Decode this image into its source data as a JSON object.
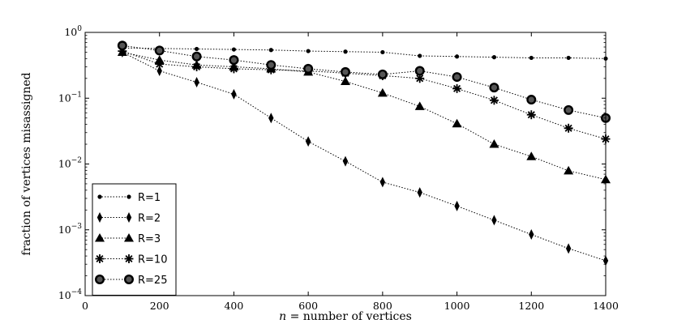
{
  "chart_data": {
    "type": "line",
    "xlabel_var": "n",
    "xlabel_rest": " = number of vertices",
    "ylabel": "fraction of vertices misassigned",
    "xlim": [
      0,
      1400
    ],
    "ylim": [
      0.0001,
      1
    ],
    "yscale": "log",
    "grid": false,
    "legend_position": "lower-left",
    "xticks": [
      0,
      200,
      400,
      600,
      800,
      1000,
      1200,
      1400
    ],
    "yticks": [
      {
        "value": 0.0001,
        "base": "10",
        "exp": "−4"
      },
      {
        "value": 0.001,
        "base": "10",
        "exp": "−3"
      },
      {
        "value": 0.01,
        "base": "10",
        "exp": "−2"
      },
      {
        "value": 0.1,
        "base": "10",
        "exp": "−1"
      },
      {
        "value": 1,
        "base": "10",
        "exp": "0"
      }
    ],
    "x": [
      100,
      200,
      300,
      400,
      500,
      600,
      700,
      800,
      900,
      1000,
      1100,
      1200,
      1300,
      1400
    ],
    "series": [
      {
        "name": "R=1",
        "marker": "dot",
        "values": [
          0.58,
          0.57,
          0.56,
          0.55,
          0.54,
          0.52,
          0.51,
          0.5,
          0.44,
          0.43,
          0.42,
          0.41,
          0.41,
          0.4
        ]
      },
      {
        "name": "R=2",
        "marker": "thin-diamond",
        "values": [
          0.5,
          0.26,
          0.175,
          0.115,
          0.05,
          0.022,
          0.011,
          0.0053,
          0.0037,
          0.0023,
          0.0014,
          0.00085,
          0.00052,
          0.00034
        ]
      },
      {
        "name": "R=3",
        "marker": "triangle",
        "values": [
          0.5,
          0.38,
          0.32,
          0.3,
          0.28,
          0.25,
          0.18,
          0.12,
          0.075,
          0.041,
          0.02,
          0.013,
          0.0079,
          0.0058
        ]
      },
      {
        "name": "R=10",
        "marker": "star",
        "values": [
          0.52,
          0.33,
          0.3,
          0.28,
          0.27,
          0.26,
          0.24,
          0.22,
          0.2,
          0.14,
          0.093,
          0.056,
          0.035,
          0.024
        ]
      },
      {
        "name": "R=25",
        "marker": "big-circle",
        "values": [
          0.63,
          0.53,
          0.43,
          0.38,
          0.32,
          0.28,
          0.25,
          0.23,
          0.26,
          0.21,
          0.145,
          0.095,
          0.066,
          0.05
        ]
      }
    ]
  }
}
